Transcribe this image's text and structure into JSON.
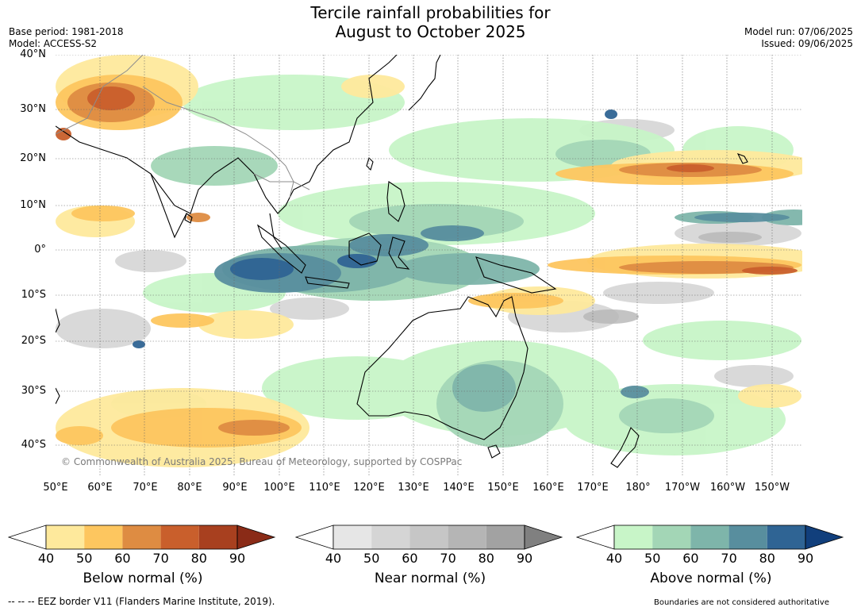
{
  "header": {
    "title_line1": "Tercile rainfall probabilities for",
    "title_line2": "August to October 2025",
    "base_period": "Base period: 1981-2018",
    "model": "Model: ACCESS-S2",
    "model_run": "Model run: 07/06/2025",
    "issued": "Issued: 09/06/2025"
  },
  "map": {
    "copyright": "© Commonwealth of Australia 2025, Bureau of Meteorology, supported by COSPPac",
    "lat_labels": [
      "40°N",
      "30°N",
      "20°N",
      "10°N",
      "0°",
      "10°S",
      "20°S",
      "30°S",
      "40°S"
    ],
    "lon_labels": [
      "50°E",
      "60°E",
      "70°E",
      "80°E",
      "90°E",
      "100°E",
      "110°E",
      "120°E",
      "130°E",
      "140°E",
      "150°E",
      "160°E",
      "170°E",
      "180°",
      "170°W",
      "160°W",
      "150°W"
    ],
    "land_color": "#ffffff",
    "coast_color": "#000000",
    "border_color": "#8c8c8c"
  },
  "legend": {
    "ticks": [
      "40",
      "50",
      "60",
      "70",
      "80",
      "90"
    ],
    "below": {
      "label": "Below normal (%)",
      "colors": [
        "#fee99c",
        "#fdc65f",
        "#de8c42",
        "#c95f2c",
        "#a8401f",
        "#8a2b17"
      ]
    },
    "near": {
      "label": "Near normal (%)",
      "colors": [
        "#e6e6e6",
        "#d5d5d5",
        "#c6c6c6",
        "#b5b5b5",
        "#a2a2a2",
        "#808080"
      ]
    },
    "above": {
      "label": "Above normal (%)",
      "colors": [
        "#c8f5c8",
        "#a3d6b6",
        "#7eb5aa",
        "#588e9e",
        "#2f6494",
        "#113f7c"
      ]
    }
  },
  "footer": {
    "eez": "--  --  -- EEZ border V11 (Flanders Marine Institute, 2019).",
    "disclaimer": "Boundaries are not considered authoritative"
  }
}
